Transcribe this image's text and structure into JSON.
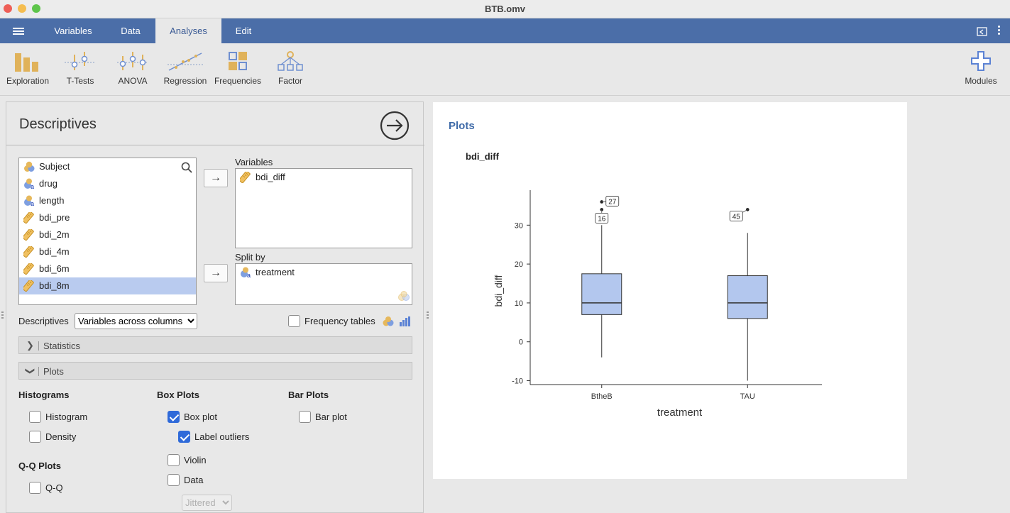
{
  "window": {
    "title": "BTB.omv"
  },
  "menu": {
    "tabs": [
      {
        "label": "Variables"
      },
      {
        "label": "Data"
      },
      {
        "label": "Analyses"
      },
      {
        "label": "Edit"
      }
    ]
  },
  "ribbon": {
    "items": [
      {
        "label": "Exploration",
        "icon": "exploration-icon"
      },
      {
        "label": "T-Tests",
        "icon": "t-tests-icon"
      },
      {
        "label": "ANOVA",
        "icon": "anova-icon"
      },
      {
        "label": "Regression",
        "icon": "regression-icon"
      },
      {
        "label": "Frequencies",
        "icon": "frequencies-icon"
      },
      {
        "label": "Factor",
        "icon": "factor-icon"
      }
    ],
    "modules_label": "Modules"
  },
  "options": {
    "title": "Descriptives",
    "source_vars": [
      {
        "name": "Subject",
        "type": "id"
      },
      {
        "name": "drug",
        "type": "nominal"
      },
      {
        "name": "length",
        "type": "nominal"
      },
      {
        "name": "bdi_pre",
        "type": "continuous"
      },
      {
        "name": "bdi_2m",
        "type": "continuous"
      },
      {
        "name": "bdi_4m",
        "type": "continuous"
      },
      {
        "name": "bdi_6m",
        "type": "continuous"
      },
      {
        "name": "bdi_8m",
        "type": "continuous",
        "selected": true
      }
    ],
    "variables_label": "Variables",
    "variables": [
      {
        "name": "bdi_diff",
        "type": "continuous"
      }
    ],
    "split_label": "Split by",
    "split": [
      {
        "name": "treatment",
        "type": "nominal"
      }
    ],
    "descriptives_label": "Descriptives",
    "descriptives_select": "Variables across columns",
    "freq_tables_label": "Frequency tables",
    "freq_tables_checked": false,
    "statistics_section": "Statistics",
    "plots_section": "Plots",
    "histograms_header": "Histograms",
    "histogram_label": "Histogram",
    "histogram_checked": false,
    "density_label": "Density",
    "density_checked": false,
    "boxplots_header": "Box Plots",
    "boxplot_label": "Box plot",
    "boxplot_checked": true,
    "label_outliers_label": "Label outliers",
    "label_outliers_checked": true,
    "violin_label": "Violin",
    "violin_checked": false,
    "data_label": "Data",
    "data_checked": false,
    "data_select": "Jittered",
    "barplots_header": "Bar Plots",
    "barplot_label": "Bar plot",
    "barplot_checked": false,
    "qq_header": "Q-Q Plots",
    "qq_label": "Q-Q",
    "qq_checked": false
  },
  "results": {
    "title": "Plots",
    "plot_title": "bdi_diff"
  },
  "chart_data": {
    "type": "boxplot",
    "xlabel": "treatment",
    "ylabel": "bdi_diff",
    "ylim": [
      -11,
      39
    ],
    "yticks": [
      -10,
      0,
      10,
      20,
      30
    ],
    "categories": [
      "BtheB",
      "TAU"
    ],
    "boxes": [
      {
        "category": "BtheB",
        "min": -4,
        "q1": 7,
        "median": 10,
        "q3": 17.5,
        "max": 30
      },
      {
        "category": "TAU",
        "min": -10,
        "q1": 6,
        "median": 10,
        "q3": 17,
        "max": 28
      }
    ],
    "outliers": [
      {
        "category": "BtheB",
        "value": 34,
        "label": "16"
      },
      {
        "category": "BtheB",
        "value": 36,
        "label": "27"
      },
      {
        "category": "TAU",
        "value": 34,
        "label": "45"
      }
    ],
    "box_color": "#b3c7ee"
  }
}
